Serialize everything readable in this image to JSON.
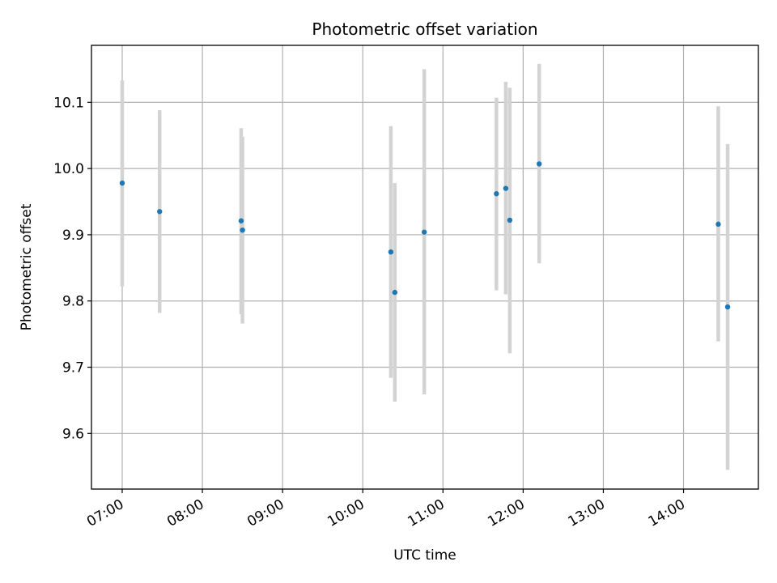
{
  "chart_data": {
    "type": "scatter",
    "title": "Photometric offset variation",
    "xlabel": "UTC time",
    "ylabel": "Photometric offset",
    "x_ticks": [
      "07:00",
      "08:00",
      "09:00",
      "10:00",
      "11:00",
      "12:00",
      "13:00",
      "14:00"
    ],
    "y_ticks": [
      "9.6",
      "9.7",
      "9.8",
      "9.9",
      "10.0",
      "10.1"
    ],
    "xlim": [
      "06:37",
      "14:56"
    ],
    "ylim": [
      9.516,
      10.186
    ],
    "grid": true,
    "marker_color": "#1f77b4",
    "errorbar_color": "#d3d3d3",
    "points": [
      {
        "x": "07:00",
        "y": 9.978,
        "yerr_low": 9.822,
        "yerr_high": 10.133
      },
      {
        "x": "07:28",
        "y": 9.935,
        "yerr_low": 9.782,
        "yerr_high": 10.088
      },
      {
        "x": "08:29",
        "y": 9.921,
        "yerr_low": 9.78,
        "yerr_high": 10.061
      },
      {
        "x": "08:30",
        "y": 9.907,
        "yerr_low": 9.766,
        "yerr_high": 10.048
      },
      {
        "x": "10:21",
        "y": 9.874,
        "yerr_low": 9.684,
        "yerr_high": 10.064
      },
      {
        "x": "10:24",
        "y": 9.813,
        "yerr_low": 9.648,
        "yerr_high": 9.978
      },
      {
        "x": "10:46",
        "y": 9.904,
        "yerr_low": 9.659,
        "yerr_high": 10.15
      },
      {
        "x": "11:40",
        "y": 9.962,
        "yerr_low": 9.816,
        "yerr_high": 10.107
      },
      {
        "x": "11:47",
        "y": 9.97,
        "yerr_low": 9.81,
        "yerr_high": 10.131
      },
      {
        "x": "11:50",
        "y": 9.922,
        "yerr_low": 9.721,
        "yerr_high": 10.122
      },
      {
        "x": "12:12",
        "y": 10.007,
        "yerr_low": 9.857,
        "yerr_high": 10.158
      },
      {
        "x": "14:26",
        "y": 9.916,
        "yerr_low": 9.739,
        "yerr_high": 10.094
      },
      {
        "x": "14:33",
        "y": 9.791,
        "yerr_low": 9.545,
        "yerr_high": 10.037
      }
    ]
  }
}
